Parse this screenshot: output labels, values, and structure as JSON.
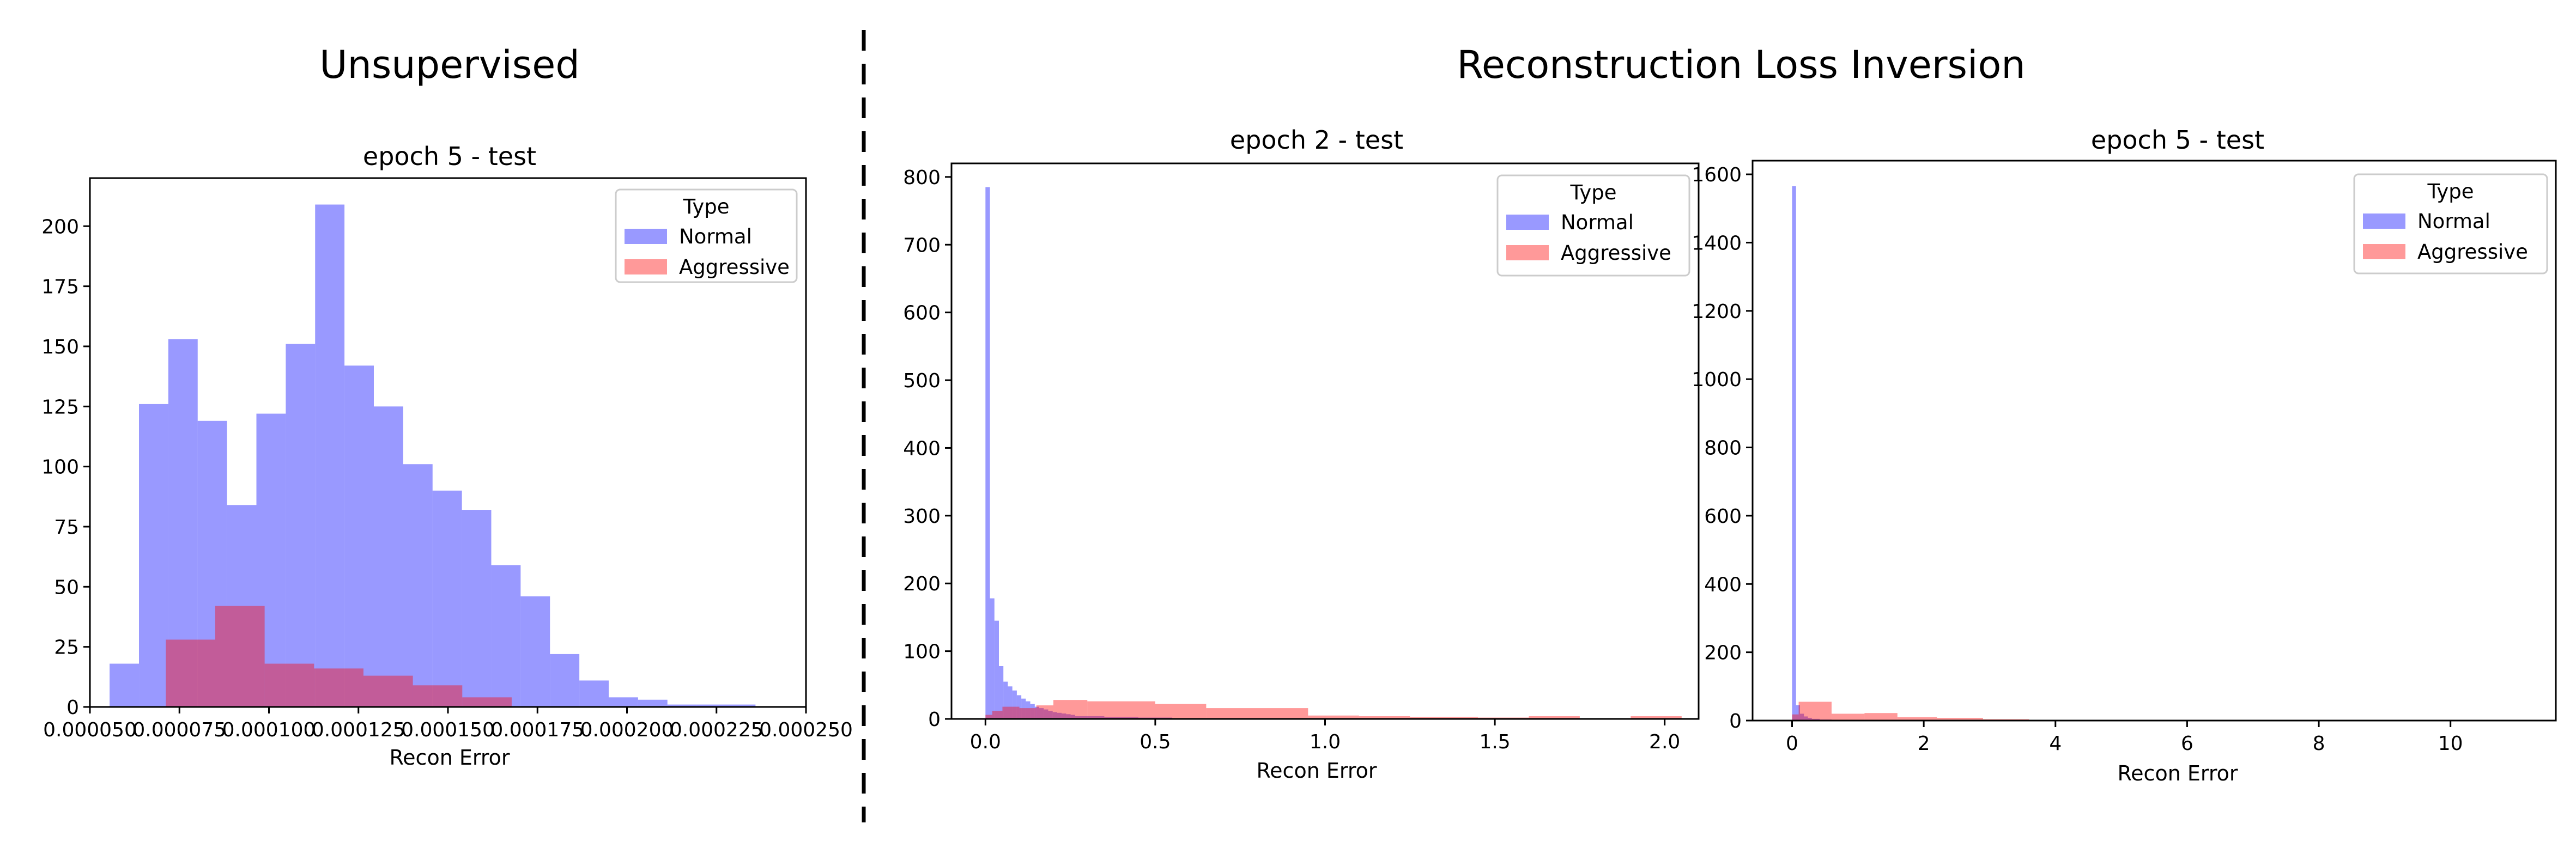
{
  "headers": {
    "left": "Unsupervised",
    "right": "Reconstruction Loss Inversion"
  },
  "colors": {
    "normal": "#0000ff",
    "aggressive": "#ff0000",
    "bar_opacity": 0.4
  },
  "chart_data": [
    {
      "type": "bar",
      "subtype": "histogram",
      "title": "epoch 5 - test",
      "xlabel": "Recon Error",
      "ylabel": "",
      "xlim": [
        5e-05,
        0.00025
      ],
      "ylim": [
        0,
        220
      ],
      "xticks": [
        5e-05,
        7.5e-05,
        0.0001,
        0.000125,
        0.00015,
        0.000175,
        0.0002,
        0.000225,
        0.00025
      ],
      "xtick_labels": [
        "0.000050",
        "0.000075",
        "0.000100",
        "0.000125",
        "0.000150",
        "0.000175",
        "0.000200",
        "0.000225",
        "0.000250"
      ],
      "yticks": [
        0,
        25,
        50,
        75,
        100,
        125,
        150,
        175,
        200
      ],
      "ytick_labels": [
        "0",
        "25",
        "50",
        "75",
        "100",
        "125",
        "150",
        "175",
        "200"
      ],
      "legend": {
        "title": "Type",
        "position": "upper right"
      },
      "series": [
        {
          "name": "Normal",
          "color": "#0000ff",
          "bins": [
            5.55e-05,
            6.37e-05,
            7.19e-05,
            8.01e-05,
            8.83e-05,
            9.65e-05,
            0.0001047,
            0.0001129,
            0.0001211,
            0.0001293,
            0.0001375,
            0.0001457,
            0.0001539,
            0.0001621,
            0.0001703,
            0.0001785,
            0.0001867,
            0.0001949,
            0.0002031,
            0.0002113,
            0.0002195,
            0.0002277,
            0.0002359
          ],
          "counts": [
            18,
            126,
            153,
            119,
            84,
            122,
            151,
            209,
            142,
            125,
            101,
            90,
            82,
            59,
            46,
            22,
            11,
            4,
            3,
            1,
            1,
            1
          ]
        },
        {
          "name": "Aggressive",
          "color": "#ff0000",
          "bins": [
            7.12e-05,
            8.5e-05,
            9.88e-05,
            0.0001126,
            0.0001264,
            0.0001402,
            0.000154,
            0.0001678
          ],
          "counts": [
            28,
            42,
            18,
            16,
            13,
            9,
            4
          ]
        }
      ]
    },
    {
      "type": "bar",
      "subtype": "histogram",
      "title": "epoch 2 - test",
      "xlabel": "Recon Error",
      "ylabel": "",
      "xlim": [
        -0.1,
        2.1
      ],
      "ylim": [
        0,
        820
      ],
      "xticks": [
        0.0,
        0.5,
        1.0,
        1.5,
        2.0
      ],
      "xtick_labels": [
        "0.0",
        "0.5",
        "1.0",
        "1.5",
        "2.0"
      ],
      "yticks": [
        0,
        100,
        200,
        300,
        400,
        500,
        600,
        700,
        800
      ],
      "ytick_labels": [
        "0",
        "100",
        "200",
        "300",
        "400",
        "500",
        "600",
        "700",
        "800"
      ],
      "legend": {
        "title": "Type",
        "position": "upper right"
      },
      "series": [
        {
          "name": "Normal",
          "color": "#0000ff",
          "bins": [
            0.0,
            0.0132,
            0.0264,
            0.0396,
            0.0528,
            0.066,
            0.0792,
            0.0924,
            0.1056,
            0.1188,
            0.132,
            0.1452,
            0.1584,
            0.1716,
            0.1848,
            0.198,
            0.2112,
            0.2244,
            0.2376,
            0.2508,
            0.264,
            0.35,
            0.45,
            0.55,
            0.65
          ],
          "counts": [
            785,
            178,
            145,
            78,
            55,
            48,
            42,
            35,
            30,
            26,
            22,
            18,
            16,
            14,
            12,
            10,
            9,
            8,
            7,
            6,
            4,
            3,
            2,
            1
          ]
        },
        {
          "name": "Aggressive",
          "color": "#ff0000",
          "bins": [
            0.0,
            0.02,
            0.05,
            0.1,
            0.15,
            0.2,
            0.3,
            0.5,
            0.65,
            0.95,
            1.1,
            1.25,
            1.45,
            1.6,
            1.75,
            1.9,
            2.05
          ],
          "counts": [
            6,
            12,
            18,
            16,
            20,
            28,
            26,
            22,
            16,
            5,
            4,
            3,
            2,
            4,
            0,
            4
          ]
        }
      ]
    },
    {
      "type": "bar",
      "subtype": "histogram",
      "title": "epoch 5 - test",
      "xlabel": "Recon Error",
      "ylabel": "",
      "xlim": [
        -0.6,
        11.6
      ],
      "ylim": [
        0,
        1640
      ],
      "xticks": [
        0,
        2,
        4,
        6,
        8,
        10
      ],
      "xtick_labels": [
        "0",
        "2",
        "4",
        "6",
        "8",
        "10"
      ],
      "yticks": [
        0,
        200,
        400,
        600,
        800,
        1000,
        1200,
        1400,
        1600
      ],
      "ytick_labels": [
        "0",
        "200",
        "400",
        "600",
        "800",
        "1000",
        "1200",
        "1400",
        "1600"
      ],
      "legend": {
        "title": "Type",
        "position": "upper right"
      },
      "series": [
        {
          "name": "Normal",
          "color": "#0000ff",
          "bins": [
            0.0,
            0.06,
            0.12,
            0.18,
            0.24,
            0.3,
            0.42,
            0.6,
            0.9
          ],
          "counts": [
            1565,
            45,
            20,
            12,
            8,
            5,
            3,
            1
          ]
        },
        {
          "name": "Aggressive",
          "color": "#ff0000",
          "bins": [
            0.0,
            0.1,
            0.6,
            1.1,
            1.6,
            2.2,
            2.9,
            3.6
          ],
          "counts": [
            18,
            55,
            20,
            22,
            10,
            8,
            4
          ]
        }
      ]
    }
  ]
}
